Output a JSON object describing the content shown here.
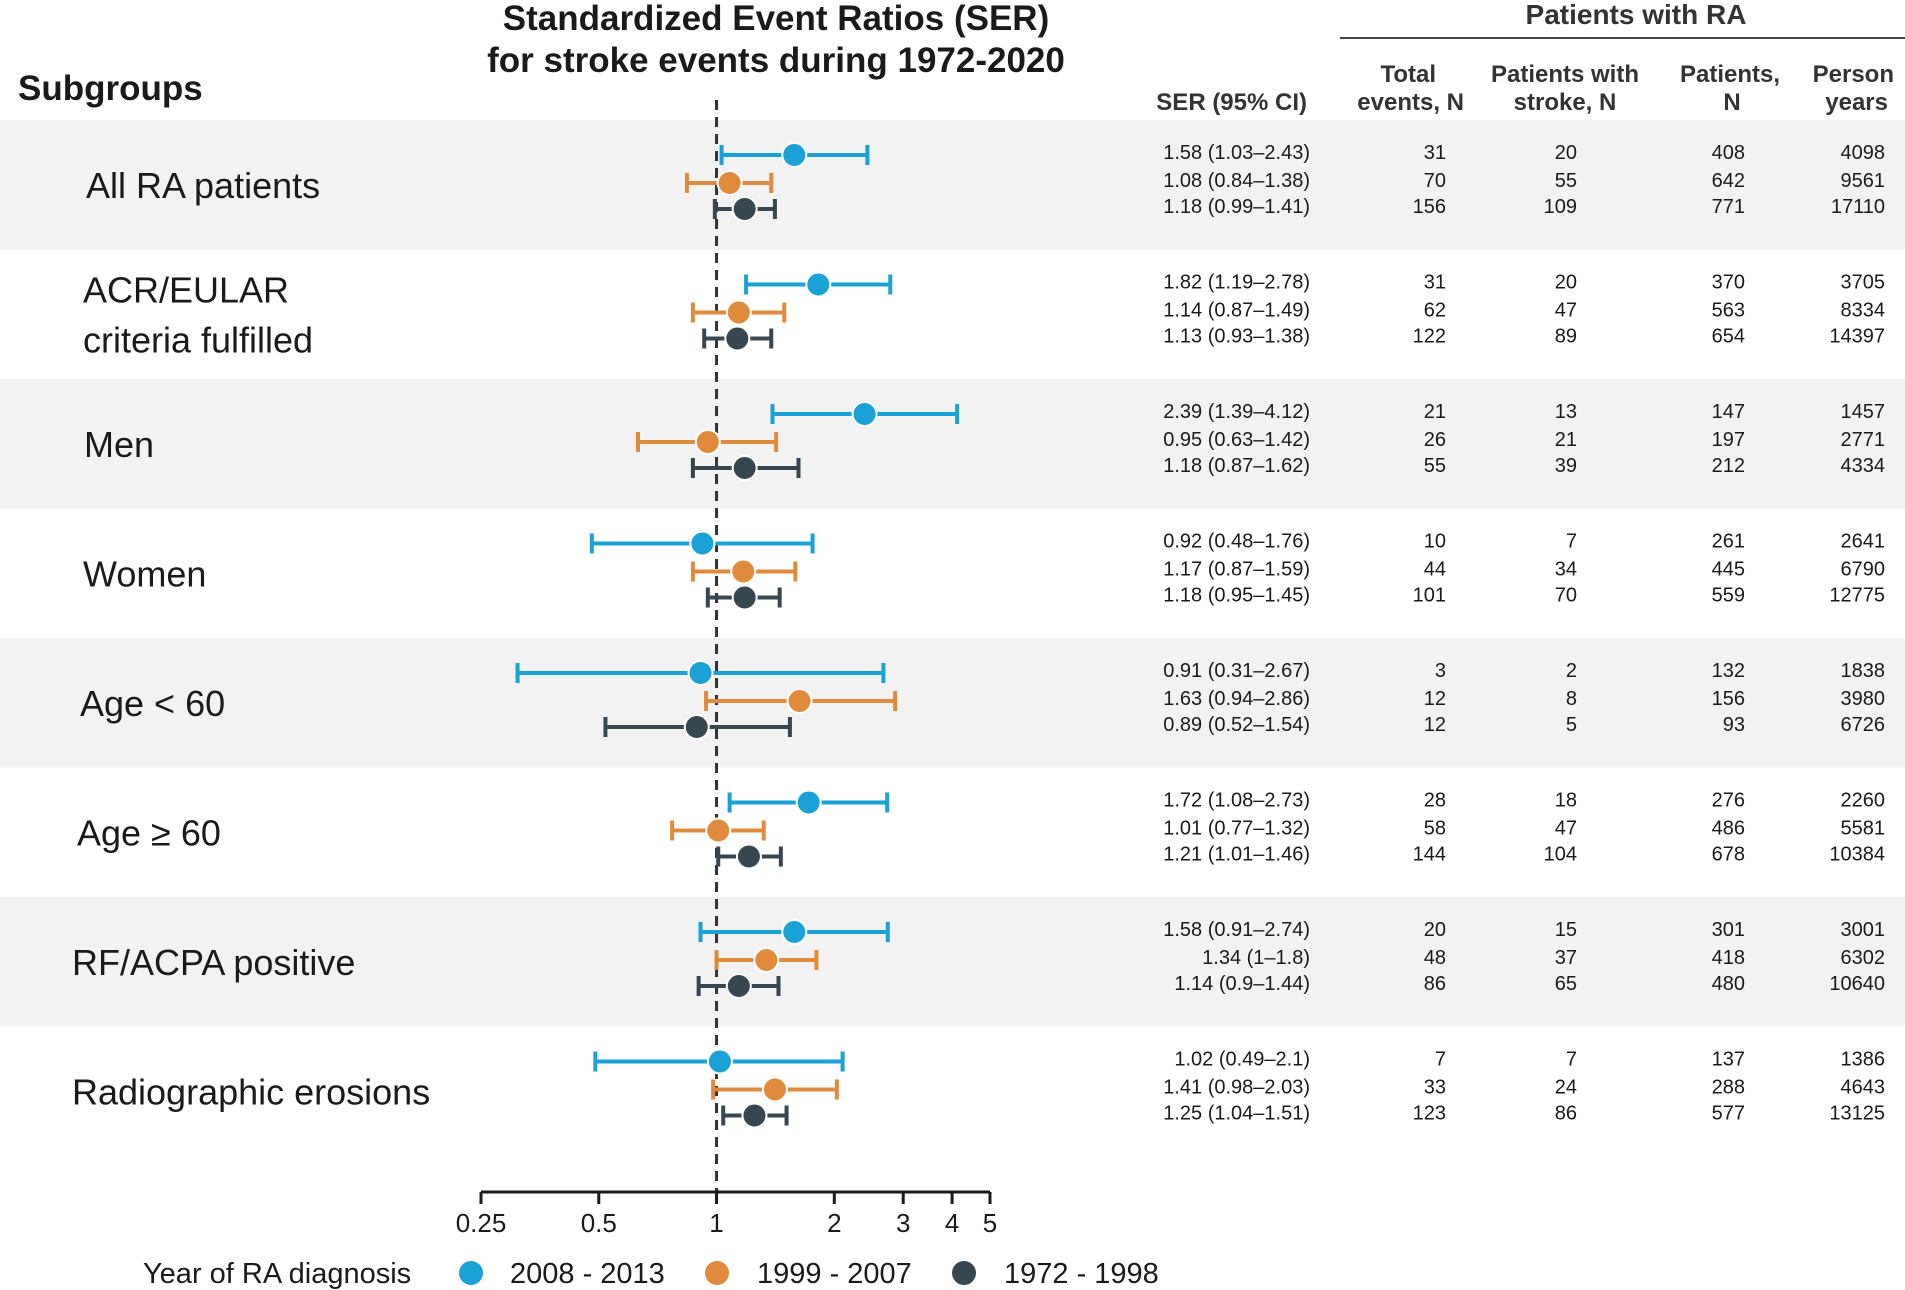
{
  "colors": {
    "2008-2013": "#1aa1d6",
    "1999-2007": "#e08a3c",
    "1972-1998": "#37474f",
    "band": "#f2f2f2",
    "reference_line": "#333333"
  },
  "title_line1": "Standardized Event Ratios (SER)",
  "title_line2": "for stroke events during 1972-2020",
  "subgroups_label": "Subgroups",
  "table_header": {
    "ra_label": "Patients with RA",
    "ser": "SER (95% CI)",
    "total_events_1": "Total",
    "total_events_2": "events, N",
    "stroke_1": "Patients with",
    "stroke_2": "stroke, N",
    "patients_1": "Patients,",
    "patients_2": "N",
    "person_1": "Person",
    "person_2": "years"
  },
  "legend": {
    "title": "Year of RA diagnosis",
    "items": [
      {
        "label": "2008 - 2013",
        "color": "#1aa1d6"
      },
      {
        "label": "1999 - 2007",
        "color": "#e08a3c"
      },
      {
        "label": "1972 - 1998",
        "color": "#37474f"
      }
    ]
  },
  "chart_data": {
    "type": "forest",
    "title": "Standardized Event Ratios (SER) for stroke events during 1972-2020",
    "x_scale": "log",
    "xlim": [
      0.25,
      5
    ],
    "x_ticks": [
      0.25,
      0.5,
      1,
      2,
      3,
      4,
      5
    ],
    "x_tick_labels": [
      "0.25",
      "0.5",
      "1",
      "2",
      "3",
      "4",
      "5"
    ],
    "reference_line": 1,
    "series_names": [
      "2008 - 2013",
      "1999 - 2007",
      "1972 - 1998"
    ],
    "groups": [
      {
        "label_lines": [
          "All RA patients"
        ],
        "rows": [
          {
            "series": "2008 - 2013",
            "ser": 1.58,
            "lo": 1.03,
            "hi": 2.43,
            "ser_text": "1.58 (1.03–2.43)",
            "events": "31",
            "stroke": "20",
            "patients": "408",
            "person_years": "4098"
          },
          {
            "series": "1999 - 2007",
            "ser": 1.08,
            "lo": 0.84,
            "hi": 1.38,
            "ser_text": "1.08 (0.84–1.38)",
            "events": "70",
            "stroke": "55",
            "patients": "642",
            "person_years": "9561"
          },
          {
            "series": "1972 - 1998",
            "ser": 1.18,
            "lo": 0.99,
            "hi": 1.41,
            "ser_text": "1.18 (0.99–1.41)",
            "events": "156",
            "stroke": "109",
            "patients": "771",
            "person_years": "17110"
          }
        ]
      },
      {
        "label_lines": [
          "ACR/EULAR",
          "criteria fulfilled"
        ],
        "rows": [
          {
            "series": "2008 - 2013",
            "ser": 1.82,
            "lo": 1.19,
            "hi": 2.78,
            "ser_text": "1.82 (1.19–2.78)",
            "events": "31",
            "stroke": "20",
            "patients": "370",
            "person_years": "3705"
          },
          {
            "series": "1999 - 2007",
            "ser": 1.14,
            "lo": 0.87,
            "hi": 1.49,
            "ser_text": "1.14 (0.87–1.49)",
            "events": "62",
            "stroke": "47",
            "patients": "563",
            "person_years": "8334"
          },
          {
            "series": "1972 - 1998",
            "ser": 1.13,
            "lo": 0.93,
            "hi": 1.38,
            "ser_text": "1.13 (0.93–1.38)",
            "events": "122",
            "stroke": "89",
            "patients": "654",
            "person_years": "14397"
          }
        ]
      },
      {
        "label_lines": [
          "Men"
        ],
        "rows": [
          {
            "series": "2008 - 2013",
            "ser": 2.39,
            "lo": 1.39,
            "hi": 4.12,
            "ser_text": "2.39 (1.39–4.12)",
            "events": "21",
            "stroke": "13",
            "patients": "147",
            "person_years": "1457"
          },
          {
            "series": "1999 - 2007",
            "ser": 0.95,
            "lo": 0.63,
            "hi": 1.42,
            "ser_text": "0.95 (0.63–1.42)",
            "events": "26",
            "stroke": "21",
            "patients": "197",
            "person_years": "2771"
          },
          {
            "series": "1972 - 1998",
            "ser": 1.18,
            "lo": 0.87,
            "hi": 1.62,
            "ser_text": "1.18 (0.87–1.62)",
            "events": "55",
            "stroke": "39",
            "patients": "212",
            "person_years": "4334"
          }
        ]
      },
      {
        "label_lines": [
          "Women"
        ],
        "rows": [
          {
            "series": "2008 - 2013",
            "ser": 0.92,
            "lo": 0.48,
            "hi": 1.76,
            "ser_text": "0.92 (0.48–1.76)",
            "events": "10",
            "stroke": "7",
            "patients": "261",
            "person_years": "2641"
          },
          {
            "series": "1999 - 2007",
            "ser": 1.17,
            "lo": 0.87,
            "hi": 1.59,
            "ser_text": "1.17 (0.87–1.59)",
            "events": "44",
            "stroke": "34",
            "patients": "445",
            "person_years": "6790"
          },
          {
            "series": "1972 - 1998",
            "ser": 1.18,
            "lo": 0.95,
            "hi": 1.45,
            "ser_text": "1.18 (0.95–1.45)",
            "events": "101",
            "stroke": "70",
            "patients": "559",
            "person_years": "12775"
          }
        ]
      },
      {
        "label_lines": [
          "Age < 60"
        ],
        "rows": [
          {
            "series": "2008 - 2013",
            "ser": 0.91,
            "lo": 0.31,
            "hi": 2.67,
            "ser_text": "0.91 (0.31–2.67)",
            "events": "3",
            "stroke": "2",
            "patients": "132",
            "person_years": "1838"
          },
          {
            "series": "1999 - 2007",
            "ser": 1.63,
            "lo": 0.94,
            "hi": 2.86,
            "ser_text": "1.63 (0.94–2.86)",
            "events": "12",
            "stroke": "8",
            "patients": "156",
            "person_years": "3980"
          },
          {
            "series": "1972 - 1998",
            "ser": 0.89,
            "lo": 0.52,
            "hi": 1.54,
            "ser_text": "0.89 (0.52–1.54)",
            "events": "12",
            "stroke": "5",
            "patients": "93",
            "person_years": "6726"
          }
        ]
      },
      {
        "label_lines": [
          "Age ≥ 60"
        ],
        "rows": [
          {
            "series": "2008 - 2013",
            "ser": 1.72,
            "lo": 1.08,
            "hi": 2.73,
            "ser_text": "1.72 (1.08–2.73)",
            "events": "28",
            "stroke": "18",
            "patients": "276",
            "person_years": "2260"
          },
          {
            "series": "1999 - 2007",
            "ser": 1.01,
            "lo": 0.77,
            "hi": 1.32,
            "ser_text": "1.01 (0.77–1.32)",
            "events": "58",
            "stroke": "47",
            "patients": "486",
            "person_years": "5581"
          },
          {
            "series": "1972 - 1998",
            "ser": 1.21,
            "lo": 1.01,
            "hi": 1.46,
            "ser_text": "1.21 (1.01–1.46)",
            "events": "144",
            "stroke": "104",
            "patients": "678",
            "person_years": "10384"
          }
        ]
      },
      {
        "label_lines": [
          "RF/ACPA positive"
        ],
        "rows": [
          {
            "series": "2008 - 2013",
            "ser": 1.58,
            "lo": 0.91,
            "hi": 2.74,
            "ser_text": "1.58 (0.91–2.74)",
            "events": "20",
            "stroke": "15",
            "patients": "301",
            "person_years": "3001"
          },
          {
            "series": "1999 - 2007",
            "ser": 1.34,
            "lo": 1.0,
            "hi": 1.8,
            "ser_text": "1.34 (1–1.8)",
            "events": "48",
            "stroke": "37",
            "patients": "418",
            "person_years": "6302"
          },
          {
            "series": "1972 - 1998",
            "ser": 1.14,
            "lo": 0.9,
            "hi": 1.44,
            "ser_text": "1.14 (0.9–1.44)",
            "events": "86",
            "stroke": "65",
            "patients": "480",
            "person_years": "10640"
          }
        ]
      },
      {
        "label_lines": [
          "Radiographic erosions"
        ],
        "rows": [
          {
            "series": "2008 - 2013",
            "ser": 1.02,
            "lo": 0.49,
            "hi": 2.1,
            "ser_text": "1.02 (0.49–2.1)",
            "events": "7",
            "stroke": "7",
            "patients": "137",
            "person_years": "1386"
          },
          {
            "series": "1999 - 2007",
            "ser": 1.41,
            "lo": 0.98,
            "hi": 2.03,
            "ser_text": "1.41 (0.98–2.03)",
            "events": "33",
            "stroke": "24",
            "patients": "288",
            "person_years": "4643"
          },
          {
            "series": "1972 - 1998",
            "ser": 1.25,
            "lo": 1.04,
            "hi": 1.51,
            "ser_text": "1.25 (1.04–1.51)",
            "events": "123",
            "stroke": "86",
            "patients": "577",
            "person_years": "13125"
          }
        ]
      }
    ]
  }
}
